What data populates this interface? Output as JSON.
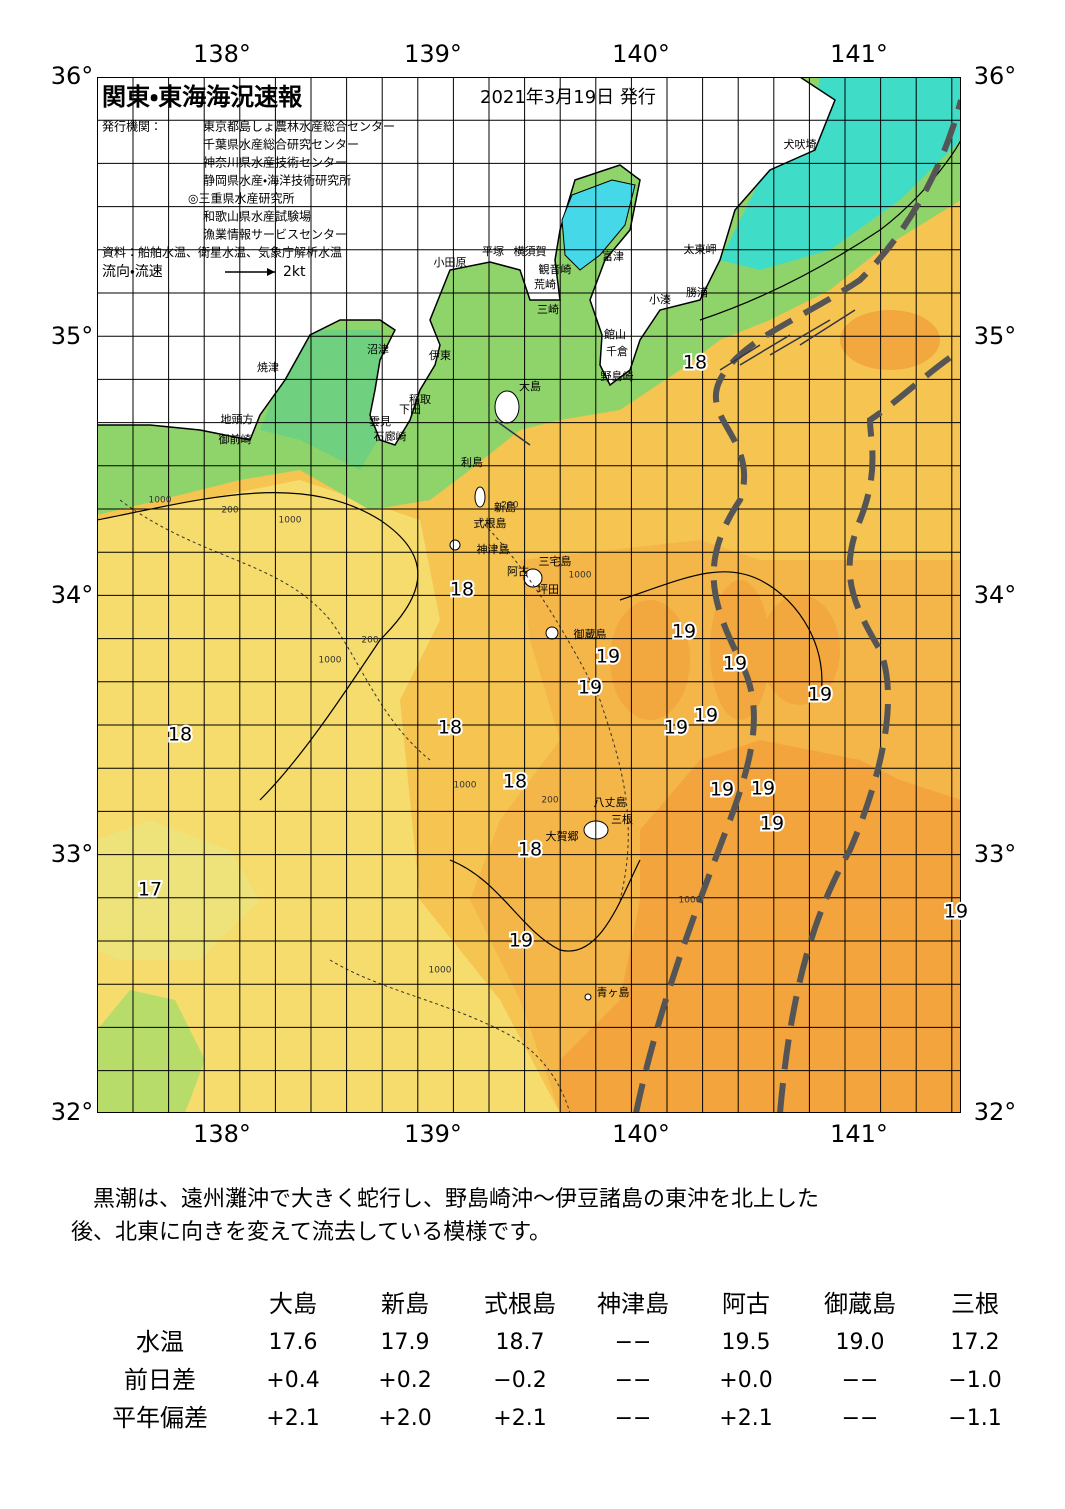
{
  "header": {
    "title": "関東・東海海況速報",
    "date": "2021年3月19日 発行"
  },
  "issuers": {
    "label": "発行機関：",
    "names": [
      "東京都島しょ農林水産総合センター",
      "千葉県水産総合研究センター",
      "神奈川県水産技術センター",
      "静岡県水産・海洋技術研究所",
      "◎三重県水産研究所",
      "和歌山県水産試験場",
      "漁業情報サービスセンター"
    ]
  },
  "sources": "資料：船舶水温、衛星水温、気象庁解析水温",
  "legend": {
    "label": "流向・流速",
    "scale": "2kt"
  },
  "map": {
    "lon_labels": [
      "138°",
      "139°",
      "140°",
      "141°"
    ],
    "lat_labels": [
      "36°",
      "35°",
      "34°",
      "33°",
      "32°"
    ],
    "temperature_labels": [
      18,
      18,
      19,
      19,
      19,
      19,
      19,
      19,
      19,
      18,
      18,
      18,
      19,
      19,
      19,
      18,
      17,
      19,
      19
    ],
    "places": [
      "犬吠埼",
      "太東岬",
      "勝浦",
      "小湊",
      "館山",
      "千倉",
      "野島崎",
      "富津",
      "横須賀",
      "観音崎",
      "平塚",
      "小田原",
      "荒崎",
      "三崎",
      "沼津",
      "伊東",
      "焼津",
      "大島",
      "稲取",
      "下田",
      "雲見",
      "石廊崎",
      "地頭方",
      "御前崎",
      "利島",
      "新島",
      "式根島",
      "神津島",
      "三宅島",
      "阿古",
      "坪田",
      "御蔵島",
      "八丈島",
      "三根",
      "大賀郷",
      "青ヶ島"
    ],
    "depth_labels": [
      "1000",
      "200",
      "1000",
      "200",
      "1000",
      "200",
      "1000",
      "1000",
      "200",
      "1000",
      "1000"
    ]
  },
  "description": [
    "黒潮は、遠州灘沖で大きく蛇行し、野島崎沖～伊豆諸島の東沖を北上した",
    "後、北東に向きを変えて流去している模様です。"
  ],
  "table": {
    "columns": [
      "大島",
      "新島",
      "式根島",
      "神津島",
      "阿古",
      "御蔵島",
      "三根"
    ],
    "rows": [
      {
        "label": "水温",
        "cells": [
          "17.6",
          "17.9",
          "18.7",
          "−−",
          "19.5",
          "19.0",
          "17.2"
        ]
      },
      {
        "label": "前日差",
        "cells": [
          "+0.4",
          "+0.2",
          "−0.2",
          "−−",
          "+0.0",
          "−−",
          "−1.0"
        ]
      },
      {
        "label": "平年偏差",
        "cells": [
          "+2.1",
          "+2.0",
          "+2.1",
          "−−",
          "+2.1",
          "−−",
          "−1.1"
        ]
      }
    ]
  }
}
